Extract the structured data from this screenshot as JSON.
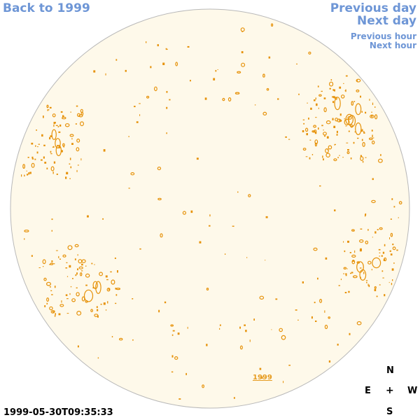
{
  "nav": {
    "back": "Back to 1999",
    "previous_day": "Previous day",
    "next_day": "Next day",
    "previous_hour": "Previous hour",
    "next_hour": "Next hour"
  },
  "disk": {
    "fill_color": "#fef9ea",
    "edge_color": "#b9b9b9",
    "feature_color": "#e6920a",
    "year_marker": "1999"
  },
  "compass": {
    "north": "N",
    "east": "E",
    "center": "+",
    "west": "W",
    "south": "S"
  },
  "timestamp": "1999-05-30T09:35:33"
}
